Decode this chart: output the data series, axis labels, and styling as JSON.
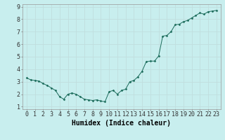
{
  "x": [
    0,
    0.5,
    1,
    1.5,
    2,
    2.5,
    3,
    3.5,
    4,
    4.5,
    5,
    5.5,
    6,
    6.5,
    7,
    7.5,
    8,
    8.5,
    9,
    9.5,
    10,
    10.5,
    11,
    11.5,
    12,
    12.5,
    13,
    13.5,
    14,
    14.5,
    15,
    15.5,
    16,
    16.5,
    17,
    17.5,
    18,
    18.5,
    19,
    19.5,
    20,
    20.5,
    21,
    21.5,
    22,
    22.5,
    23
  ],
  "y": [
    3.3,
    3.15,
    3.1,
    3.05,
    2.85,
    2.7,
    2.5,
    2.3,
    1.8,
    1.6,
    2.0,
    2.1,
    2.0,
    1.8,
    1.6,
    1.55,
    1.5,
    1.55,
    1.45,
    1.4,
    2.2,
    2.3,
    2.0,
    2.3,
    2.4,
    3.0,
    3.1,
    3.4,
    3.85,
    4.6,
    4.65,
    4.65,
    5.05,
    6.65,
    6.7,
    7.0,
    7.55,
    7.6,
    7.8,
    7.9,
    8.1,
    8.3,
    8.5,
    8.4,
    8.6,
    8.65,
    8.7
  ],
  "line_color": "#1a6b5a",
  "marker_color": "#1a6b5a",
  "bg_color": "#c8eeee",
  "grid_color": "#c0dede",
  "axis_label": "Humidex (Indice chaleur)",
  "xlim": [
    -0.5,
    23.5
  ],
  "ylim": [
    0.8,
    9.2
  ],
  "xticks": [
    0,
    1,
    2,
    3,
    4,
    5,
    6,
    7,
    8,
    9,
    10,
    11,
    12,
    13,
    14,
    15,
    16,
    17,
    18,
    19,
    20,
    21,
    22,
    23
  ],
  "yticks": [
    1,
    2,
    3,
    4,
    5,
    6,
    7,
    8,
    9
  ],
  "tick_fontsize": 6.0,
  "label_fontsize": 7.0
}
